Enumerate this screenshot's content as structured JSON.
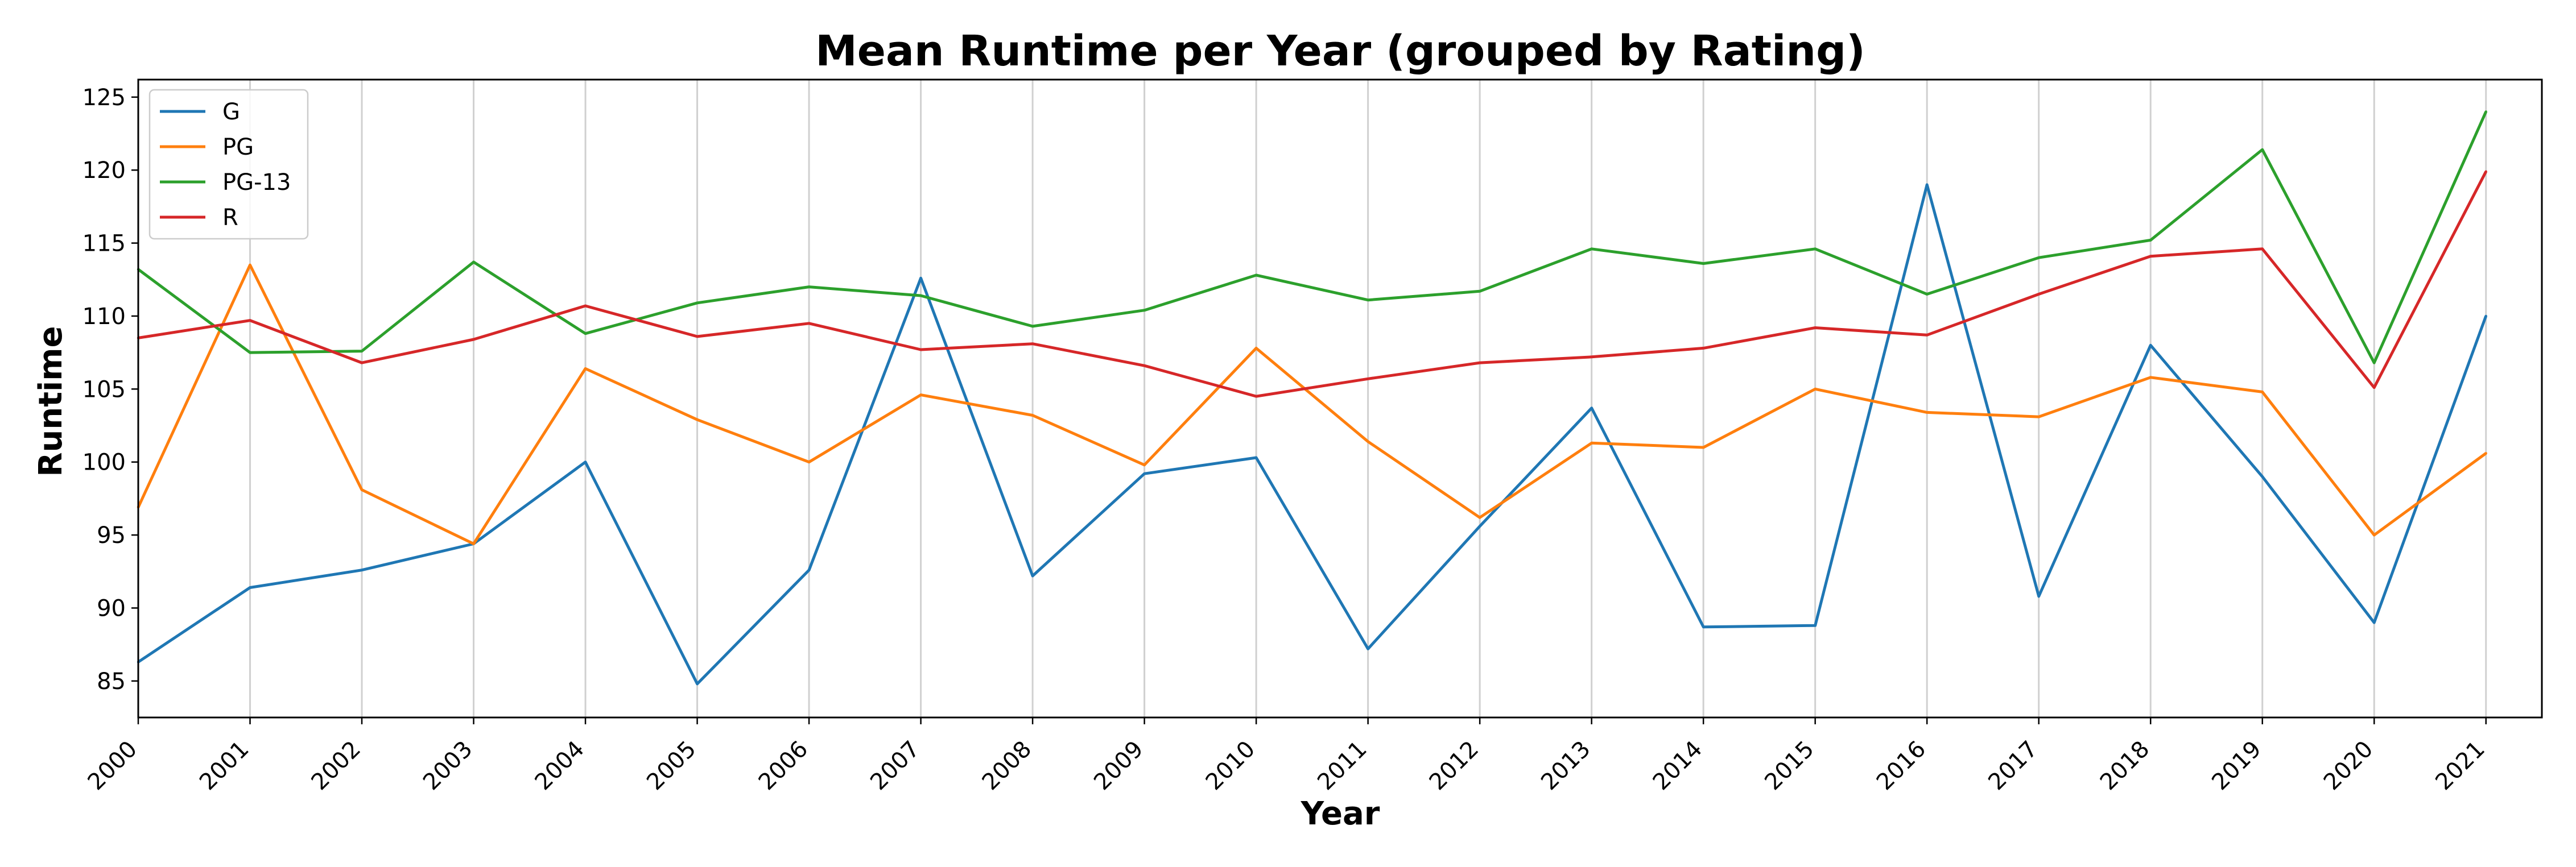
{
  "chart_data": {
    "type": "line",
    "title": "Mean Runtime per Year (grouped by Rating)",
    "xlabel": "Year",
    "ylabel": "Runtime",
    "x": [
      2000,
      2001,
      2002,
      2003,
      2004,
      2005,
      2006,
      2007,
      2008,
      2009,
      2010,
      2011,
      2012,
      2013,
      2014,
      2015,
      2016,
      2017,
      2018,
      2019,
      2020,
      2021
    ],
    "xlim": [
      2000,
      2021.5
    ],
    "ylim": [
      82.5,
      126.2
    ],
    "yticks": [
      85,
      90,
      95,
      100,
      105,
      110,
      115,
      120,
      125
    ],
    "grid": "vertical",
    "legend_position": "top-left",
    "series": [
      {
        "name": "G",
        "color": "#1f77b4",
        "values": [
          86.3,
          91.4,
          92.6,
          94.4,
          100.0,
          84.8,
          92.6,
          112.6,
          92.2,
          99.2,
          100.3,
          87.2,
          95.6,
          103.7,
          88.7,
          88.8,
          119.0,
          90.8,
          108.0,
          99.0,
          89.0,
          110.0
        ]
      },
      {
        "name": "PG",
        "color": "#ff7f0e",
        "values": [
          96.9,
          113.5,
          98.1,
          94.4,
          106.4,
          102.9,
          100.0,
          104.6,
          103.2,
          99.8,
          107.8,
          101.4,
          96.2,
          101.3,
          101.0,
          105.0,
          103.4,
          103.1,
          105.8,
          104.8,
          95.0,
          100.6
        ]
      },
      {
        "name": "PG-13",
        "color": "#2ca02c",
        "values": [
          113.2,
          107.5,
          107.6,
          113.7,
          108.8,
          110.9,
          112.0,
          111.4,
          109.3,
          110.4,
          112.8,
          111.1,
          111.7,
          114.6,
          113.6,
          114.6,
          111.5,
          114.0,
          115.2,
          121.4,
          106.8,
          124.0
        ]
      },
      {
        "name": "R",
        "color": "#d62728",
        "values": [
          108.5,
          109.7,
          106.8,
          108.4,
          110.7,
          108.6,
          109.5,
          107.7,
          108.1,
          106.6,
          104.5,
          105.7,
          106.8,
          107.2,
          107.8,
          109.2,
          108.7,
          111.5,
          114.1,
          114.6,
          105.1,
          119.9
        ]
      }
    ]
  }
}
